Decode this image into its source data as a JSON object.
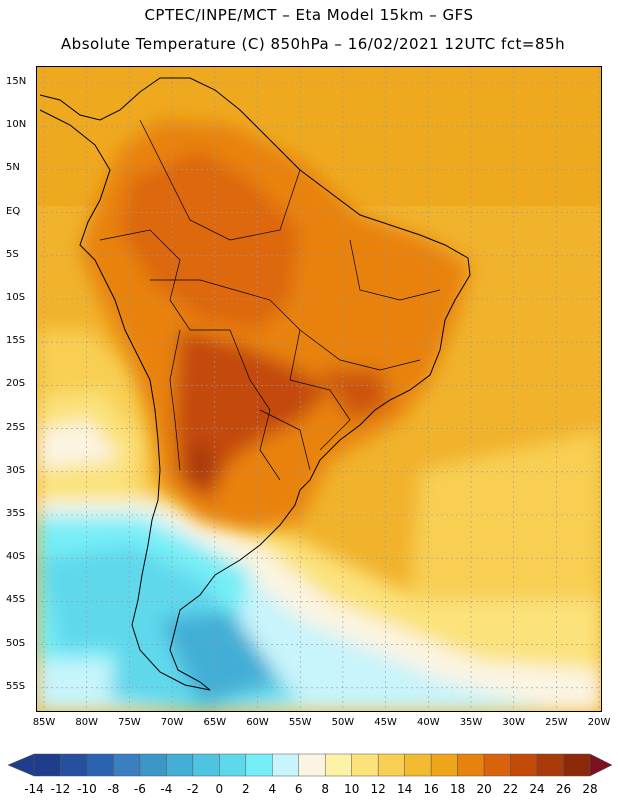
{
  "header": {
    "line1": "CPTEC/INPE/MCT –  Eta Model 15km – GFS",
    "line2": "Absolute Temperature (C) 850hPa – 16/02/2021 12UTC fct=85h"
  },
  "map": {
    "lat_labels": [
      "15N",
      "10N",
      "5N",
      "EQ",
      "5S",
      "10S",
      "15S",
      "20S",
      "25S",
      "30S",
      "35S",
      "40S",
      "45S",
      "50S",
      "55S"
    ],
    "lon_labels": [
      "85W",
      "80W",
      "75W",
      "70W",
      "65W",
      "60W",
      "55W",
      "50W",
      "45W",
      "40W",
      "35W",
      "30W",
      "25W",
      "20W"
    ]
  },
  "colorbar": {
    "labels": [
      "-14",
      "-12",
      "-10",
      "-8",
      "-6",
      "-4",
      "-2",
      "0",
      "2",
      "4",
      "6",
      "8",
      "10",
      "12",
      "14",
      "16",
      "18",
      "20",
      "22",
      "24",
      "26",
      "28"
    ],
    "colors": [
      "#1f3d8a",
      "#24509e",
      "#2a64b0",
      "#3a7fbf",
      "#3d96c8",
      "#43aed6",
      "#4fc4e2",
      "#5fd8ec",
      "#76eef7",
      "#c8f4fb",
      "#fbf4e2",
      "#fdf2a6",
      "#fbe27a",
      "#f8cf52",
      "#f2bb30",
      "#eea51a",
      "#e8820f",
      "#d9620c",
      "#c44a0a",
      "#a93a0a",
      "#8a2a0a"
    ],
    "low_color": "#1f3d8a",
    "high_color": "#7a1020"
  }
}
